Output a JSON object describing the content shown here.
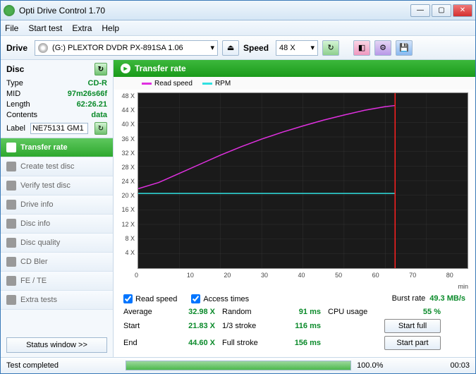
{
  "window": {
    "title": "Opti Drive Control 1.70"
  },
  "menu": {
    "file": "File",
    "starttest": "Start test",
    "extra": "Extra",
    "help": "Help"
  },
  "toolbar": {
    "drive_label": "Drive",
    "drive_value": "(G:)   PLEXTOR  DVDR   PX-891SA 1.06",
    "speed_label": "Speed",
    "speed_value": "48 X"
  },
  "disc": {
    "header": "Disc",
    "type_label": "Type",
    "type_value": "CD-R",
    "mid_label": "MID",
    "mid_value": "97m26s66f",
    "length_label": "Length",
    "length_value": "62:26.21",
    "contents_label": "Contents",
    "contents_value": "data",
    "label_label": "Label",
    "label_value": "NE75131 GM1"
  },
  "side": {
    "transfer": "Transfer rate",
    "create": "Create test disc",
    "verify": "Verify test disc",
    "driveinfo": "Drive info",
    "discinfo": "Disc info",
    "quality": "Disc quality",
    "cdbler": "CD Bler",
    "fete": "FE / TE",
    "extra": "Extra tests",
    "statuswin": "Status window >>"
  },
  "chart": {
    "title": "Transfer rate",
    "legend_read": "Read speed",
    "legend_rpm": "RPM",
    "read_color": "#e030e0",
    "rpm_color": "#30e0e0",
    "endline_color": "#ff2020",
    "bg_color": "#1a1a1a",
    "grid_color": "#404040",
    "yticks": [
      "48 X",
      "44 X",
      "40 X",
      "36 X",
      "32 X",
      "28 X",
      "24 X",
      "20 X",
      "16 X",
      "12 X",
      "8 X",
      "4 X"
    ],
    "xticks": [
      "0",
      "10",
      "20",
      "30",
      "40",
      "50",
      "60",
      "70",
      "80"
    ],
    "xlabel": "min",
    "ymin": 0,
    "ymax": 48,
    "xmin": 0,
    "xmax": 80,
    "read_curve": [
      [
        0,
        21.8
      ],
      [
        5,
        23.5
      ],
      [
        10,
        26.0
      ],
      [
        15,
        28.5
      ],
      [
        20,
        31.0
      ],
      [
        25,
        33.3
      ],
      [
        30,
        35.4
      ],
      [
        35,
        37.3
      ],
      [
        40,
        39.0
      ],
      [
        45,
        40.6
      ],
      [
        50,
        42.0
      ],
      [
        55,
        43.3
      ],
      [
        60,
        44.3
      ],
      [
        62.4,
        44.6
      ]
    ],
    "rpm_line_y": 20.5,
    "rpm_x_end": 62.4,
    "end_x": 62.4
  },
  "stats": {
    "chk_read": "Read speed",
    "chk_access": "Access times",
    "burst_label": "Burst rate",
    "burst_value": "49.3 MB/s",
    "average_label": "Average",
    "average_value": "32.98 X",
    "start_label": "Start",
    "start_value": "21.83 X",
    "end_label": "End",
    "end_value": "44.60 X",
    "random_label": "Random",
    "random_value": "91 ms",
    "third_label": "1/3 stroke",
    "third_value": "116 ms",
    "full_label": "Full stroke",
    "full_value": "156 ms",
    "cpu_label": "CPU usage",
    "cpu_value": "55 %",
    "startfull": "Start full",
    "startpart": "Start part"
  },
  "status": {
    "text": "Test completed",
    "percent": "100.0%",
    "time": "00:03",
    "progress_pct": 100
  }
}
